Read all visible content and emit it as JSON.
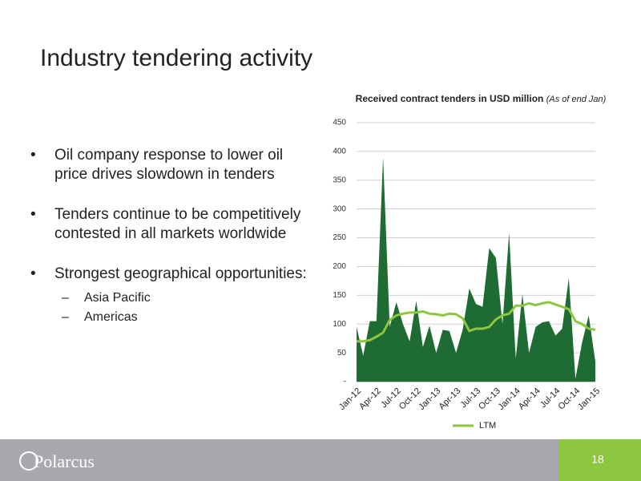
{
  "slide": {
    "title": "Industry tendering activity",
    "bullets": [
      "Oil company response to lower oil price drives slowdown in tenders",
      "Tenders continue to be competitively contested in all markets worldwide",
      "Strongest geographical opportunities:"
    ],
    "sub_bullets": [
      "Asia Pacific",
      "Americas"
    ],
    "logo": "Polarcus",
    "page_number": "18"
  },
  "chart_data": {
    "type": "area",
    "title": "Received contract tenders in USD million",
    "subtitle": "(As of end Jan)",
    "categories": [
      "Jan-12",
      null,
      null,
      "Apr-12",
      null,
      null,
      "Jul-12",
      null,
      null,
      "Oct-12",
      null,
      null,
      "Jan-13",
      null,
      null,
      "Apr-13",
      null,
      null,
      "Jul-13",
      null,
      null,
      "Oct-13",
      null,
      null,
      "Jan-14",
      null,
      null,
      "Apr-14",
      null,
      null,
      "Jul-14",
      null,
      null,
      "Oct-14",
      null,
      null,
      "Jan-15"
    ],
    "series": [
      {
        "type": "area",
        "color": "#1e6b33",
        "values": [
          95,
          45,
          105,
          105,
          390,
          95,
          138,
          100,
          70,
          140,
          60,
          97,
          50,
          90,
          88,
          50,
          90,
          162,
          135,
          130,
          232,
          215,
          100,
          258,
          40,
          152,
          50,
          95,
          103,
          105,
          80,
          92,
          180,
          5,
          68,
          115,
          35
        ]
      },
      {
        "type": "line",
        "name": "LTM",
        "color": "#8dc63f",
        "values": [
          70,
          70,
          72,
          78,
          85,
          107,
          115,
          118,
          120,
          120,
          122,
          118,
          117,
          115,
          118,
          117,
          110,
          88,
          92,
          92,
          95,
          108,
          115,
          118,
          132,
          132,
          136,
          133,
          136,
          138,
          134,
          130,
          126,
          105,
          100,
          92,
          90
        ]
      }
    ],
    "ylim": [
      0,
      450
    ],
    "yticks": [
      {
        "value": 0,
        "label": "-"
      },
      50,
      100,
      150,
      200,
      250,
      300,
      350,
      400,
      450
    ],
    "grid": true,
    "legend": "bottom"
  }
}
